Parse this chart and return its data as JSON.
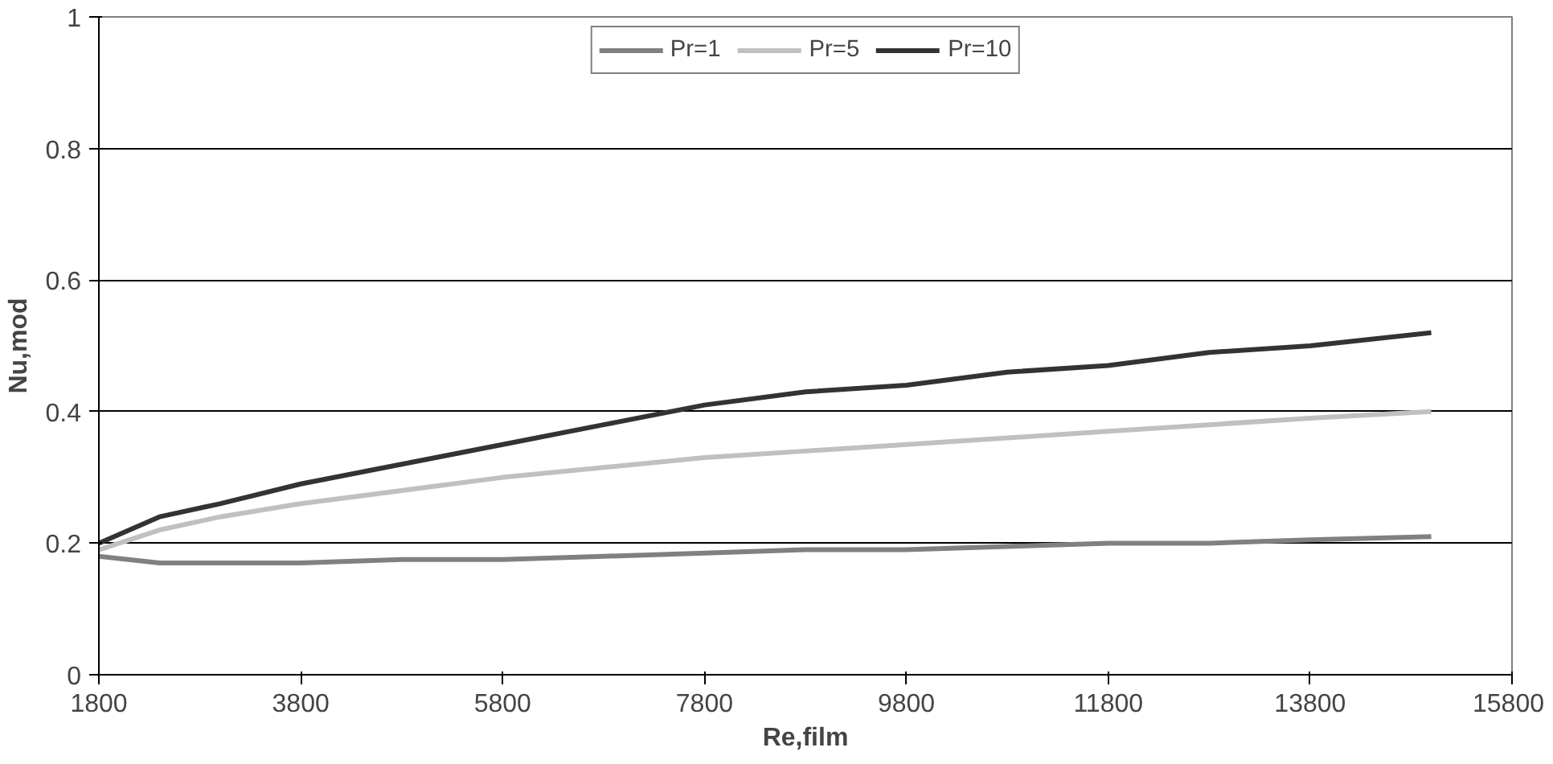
{
  "chart_data": {
    "type": "line",
    "xlabel": "Re,film",
    "ylabel": "Nu,mod",
    "x": [
      1800,
      2400,
      3000,
      3800,
      4800,
      5800,
      6800,
      7800,
      8800,
      9800,
      10800,
      11800,
      12800,
      13800,
      15000
    ],
    "series": [
      {
        "name": "Pr=1",
        "color": "#808080",
        "values": [
          0.18,
          0.17,
          0.17,
          0.17,
          0.175,
          0.175,
          0.18,
          0.185,
          0.19,
          0.19,
          0.195,
          0.2,
          0.2,
          0.205,
          0.21
        ]
      },
      {
        "name": "Pr=5",
        "color": "#c0c0c0",
        "values": [
          0.19,
          0.22,
          0.24,
          0.26,
          0.28,
          0.3,
          0.315,
          0.33,
          0.34,
          0.35,
          0.36,
          0.37,
          0.38,
          0.39,
          0.4
        ]
      },
      {
        "name": "Pr=10",
        "color": "#333333",
        "values": [
          0.2,
          0.24,
          0.26,
          0.29,
          0.32,
          0.35,
          0.38,
          0.41,
          0.43,
          0.44,
          0.46,
          0.47,
          0.49,
          0.5,
          0.52
        ]
      }
    ],
    "xlim": [
      1800,
      15800
    ],
    "xticks": [
      1800,
      3800,
      5800,
      7800,
      9800,
      11800,
      13800,
      15800
    ],
    "ylim": [
      0,
      1
    ],
    "yticks": [
      0,
      {
        "value": 0.2,
        "label": "0.2"
      },
      {
        "value": 0.4,
        "label": "0.4"
      },
      {
        "value": 0.6,
        "label": "0.6"
      },
      {
        "value": 0.8,
        "label": "0.8"
      },
      1
    ],
    "grid": "y",
    "legend": "top"
  }
}
